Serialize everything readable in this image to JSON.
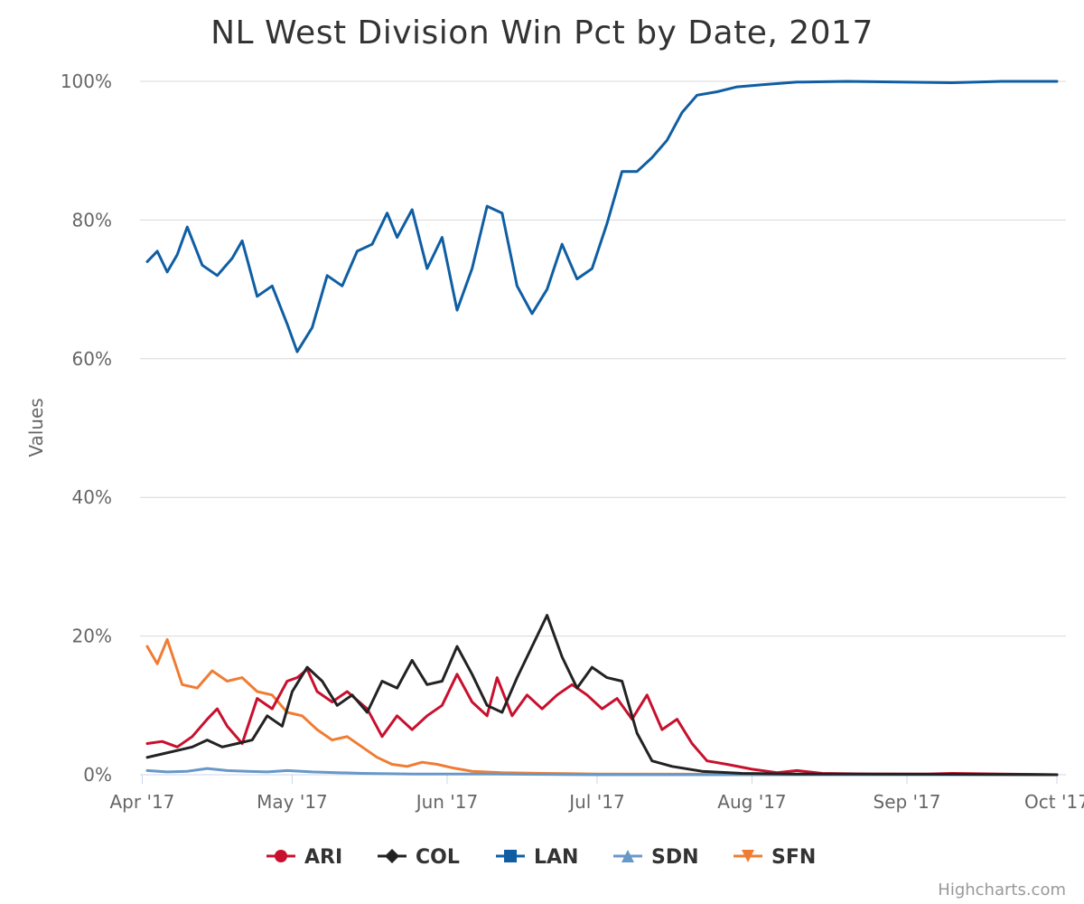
{
  "chart_data": {
    "type": "line",
    "title": "NL West Division Win Pct by Date, 2017",
    "ylabel": "Values",
    "xlabel": "",
    "ylim": [
      0,
      100
    ],
    "y_ticks": [
      "0%",
      "20%",
      "40%",
      "60%",
      "80%",
      "100%"
    ],
    "x_ticks": [
      "Apr '17",
      "May '17",
      "Jun '17",
      "Jul '17",
      "Aug '17",
      "Sep '17",
      "Oct '17"
    ],
    "x_tick_dates": [
      "2017-04-01",
      "2017-05-01",
      "2017-06-01",
      "2017-07-01",
      "2017-08-01",
      "2017-09-01",
      "2017-10-01"
    ],
    "x_range": [
      "2017-04-02",
      "2017-10-01"
    ],
    "legend_position": "bottom-center",
    "grid": true,
    "credits": "Highcharts.com",
    "series": [
      {
        "name": "ARI",
        "color": "#c8102e",
        "marker": "circle",
        "points": [
          [
            "2017-04-02",
            4.5
          ],
          [
            "2017-04-05",
            4.8
          ],
          [
            "2017-04-08",
            4.0
          ],
          [
            "2017-04-11",
            5.5
          ],
          [
            "2017-04-14",
            8.0
          ],
          [
            "2017-04-16",
            9.5
          ],
          [
            "2017-04-18",
            7.0
          ],
          [
            "2017-04-21",
            4.5
          ],
          [
            "2017-04-24",
            11.0
          ],
          [
            "2017-04-27",
            9.5
          ],
          [
            "2017-04-30",
            13.5
          ],
          [
            "2017-05-02",
            14.0
          ],
          [
            "2017-05-04",
            15.2
          ],
          [
            "2017-05-06",
            12.0
          ],
          [
            "2017-05-09",
            10.5
          ],
          [
            "2017-05-12",
            12.0
          ],
          [
            "2017-05-16",
            9.5
          ],
          [
            "2017-05-19",
            5.5
          ],
          [
            "2017-05-22",
            8.5
          ],
          [
            "2017-05-25",
            6.5
          ],
          [
            "2017-05-28",
            8.5
          ],
          [
            "2017-05-31",
            10.0
          ],
          [
            "2017-06-03",
            14.5
          ],
          [
            "2017-06-06",
            10.5
          ],
          [
            "2017-06-09",
            8.5
          ],
          [
            "2017-06-11",
            14.0
          ],
          [
            "2017-06-14",
            8.5
          ],
          [
            "2017-06-17",
            11.5
          ],
          [
            "2017-06-20",
            9.5
          ],
          [
            "2017-06-23",
            11.5
          ],
          [
            "2017-06-26",
            13.0
          ],
          [
            "2017-06-29",
            11.5
          ],
          [
            "2017-07-02",
            9.5
          ],
          [
            "2017-07-05",
            11.0
          ],
          [
            "2017-07-08",
            8.0
          ],
          [
            "2017-07-11",
            11.5
          ],
          [
            "2017-07-14",
            6.5
          ],
          [
            "2017-07-17",
            8.0
          ],
          [
            "2017-07-20",
            4.5
          ],
          [
            "2017-07-23",
            2.0
          ],
          [
            "2017-07-27",
            1.5
          ],
          [
            "2017-08-01",
            0.8
          ],
          [
            "2017-08-06",
            0.3
          ],
          [
            "2017-08-10",
            0.6
          ],
          [
            "2017-08-15",
            0.2
          ],
          [
            "2017-08-25",
            0.1
          ],
          [
            "2017-09-05",
            0.1
          ],
          [
            "2017-09-10",
            0.2
          ],
          [
            "2017-09-20",
            0.1
          ],
          [
            "2017-10-01",
            0.0
          ]
        ]
      },
      {
        "name": "COL",
        "color": "#222222",
        "marker": "diamond",
        "points": [
          [
            "2017-04-02",
            2.5
          ],
          [
            "2017-04-05",
            3.0
          ],
          [
            "2017-04-08",
            3.5
          ],
          [
            "2017-04-11",
            4.0
          ],
          [
            "2017-04-14",
            5.0
          ],
          [
            "2017-04-17",
            4.0
          ],
          [
            "2017-04-20",
            4.5
          ],
          [
            "2017-04-23",
            5.0
          ],
          [
            "2017-04-26",
            8.5
          ],
          [
            "2017-04-29",
            7.0
          ],
          [
            "2017-05-01",
            12.0
          ],
          [
            "2017-05-04",
            15.5
          ],
          [
            "2017-05-07",
            13.5
          ],
          [
            "2017-05-10",
            10.0
          ],
          [
            "2017-05-13",
            11.5
          ],
          [
            "2017-05-16",
            9.0
          ],
          [
            "2017-05-19",
            13.5
          ],
          [
            "2017-05-22",
            12.5
          ],
          [
            "2017-05-25",
            16.5
          ],
          [
            "2017-05-28",
            13.0
          ],
          [
            "2017-05-31",
            13.5
          ],
          [
            "2017-06-03",
            18.5
          ],
          [
            "2017-06-06",
            14.5
          ],
          [
            "2017-06-09",
            10.0
          ],
          [
            "2017-06-12",
            9.0
          ],
          [
            "2017-06-15",
            14.0
          ],
          [
            "2017-06-18",
            18.5
          ],
          [
            "2017-06-21",
            23.0
          ],
          [
            "2017-06-24",
            17.0
          ],
          [
            "2017-06-27",
            12.5
          ],
          [
            "2017-06-30",
            15.5
          ],
          [
            "2017-07-03",
            14.0
          ],
          [
            "2017-07-06",
            13.5
          ],
          [
            "2017-07-09",
            6.0
          ],
          [
            "2017-07-12",
            2.0
          ],
          [
            "2017-07-16",
            1.2
          ],
          [
            "2017-07-22",
            0.5
          ],
          [
            "2017-07-30",
            0.2
          ],
          [
            "2017-08-10",
            0.1
          ],
          [
            "2017-08-25",
            0.1
          ],
          [
            "2017-10-01",
            0.0
          ]
        ]
      },
      {
        "name": "LAN",
        "color": "#0f5ea3",
        "marker": "square",
        "points": [
          [
            "2017-04-02",
            74.0
          ],
          [
            "2017-04-04",
            75.5
          ],
          [
            "2017-04-06",
            72.5
          ],
          [
            "2017-04-08",
            75.0
          ],
          [
            "2017-04-10",
            79.0
          ],
          [
            "2017-04-13",
            73.5
          ],
          [
            "2017-04-16",
            72.0
          ],
          [
            "2017-04-19",
            74.5
          ],
          [
            "2017-04-21",
            77.0
          ],
          [
            "2017-04-24",
            69.0
          ],
          [
            "2017-04-27",
            70.5
          ],
          [
            "2017-04-30",
            65.0
          ],
          [
            "2017-05-02",
            61.0
          ],
          [
            "2017-05-05",
            64.5
          ],
          [
            "2017-05-08",
            72.0
          ],
          [
            "2017-05-11",
            70.5
          ],
          [
            "2017-05-14",
            75.5
          ],
          [
            "2017-05-17",
            76.5
          ],
          [
            "2017-05-20",
            81.0
          ],
          [
            "2017-05-22",
            77.5
          ],
          [
            "2017-05-25",
            81.5
          ],
          [
            "2017-05-28",
            73.0
          ],
          [
            "2017-05-31",
            77.5
          ],
          [
            "2017-06-03",
            67.0
          ],
          [
            "2017-06-06",
            73.0
          ],
          [
            "2017-06-09",
            82.0
          ],
          [
            "2017-06-12",
            81.0
          ],
          [
            "2017-06-15",
            70.5
          ],
          [
            "2017-06-18",
            66.5
          ],
          [
            "2017-06-21",
            70.0
          ],
          [
            "2017-06-24",
            76.5
          ],
          [
            "2017-06-27",
            71.5
          ],
          [
            "2017-06-30",
            73.0
          ],
          [
            "2017-07-03",
            79.5
          ],
          [
            "2017-07-06",
            87.0
          ],
          [
            "2017-07-09",
            87.0
          ],
          [
            "2017-07-12",
            89.0
          ],
          [
            "2017-07-15",
            91.5
          ],
          [
            "2017-07-18",
            95.5
          ],
          [
            "2017-07-21",
            98.0
          ],
          [
            "2017-07-25",
            98.5
          ],
          [
            "2017-07-29",
            99.2
          ],
          [
            "2017-08-03",
            99.5
          ],
          [
            "2017-08-10",
            99.9
          ],
          [
            "2017-08-20",
            100.0
          ],
          [
            "2017-09-10",
            99.8
          ],
          [
            "2017-09-20",
            100.0
          ],
          [
            "2017-10-01",
            100.0
          ]
        ]
      },
      {
        "name": "SDN",
        "color": "#6898c8",
        "marker": "triangle",
        "points": [
          [
            "2017-04-02",
            0.6
          ],
          [
            "2017-04-06",
            0.4
          ],
          [
            "2017-04-10",
            0.5
          ],
          [
            "2017-04-14",
            0.9
          ],
          [
            "2017-04-18",
            0.6
          ],
          [
            "2017-04-22",
            0.5
          ],
          [
            "2017-04-26",
            0.4
          ],
          [
            "2017-04-30",
            0.6
          ],
          [
            "2017-05-05",
            0.4
          ],
          [
            "2017-05-10",
            0.3
          ],
          [
            "2017-05-15",
            0.2
          ],
          [
            "2017-05-25",
            0.1
          ],
          [
            "2017-06-10",
            0.1
          ],
          [
            "2017-07-01",
            0.0
          ],
          [
            "2017-10-01",
            0.0
          ]
        ]
      },
      {
        "name": "SFN",
        "color": "#f07c33",
        "marker": "triangle-down",
        "points": [
          [
            "2017-04-02",
            18.5
          ],
          [
            "2017-04-04",
            16.0
          ],
          [
            "2017-04-06",
            19.5
          ],
          [
            "2017-04-09",
            13.0
          ],
          [
            "2017-04-12",
            12.5
          ],
          [
            "2017-04-15",
            15.0
          ],
          [
            "2017-04-18",
            13.5
          ],
          [
            "2017-04-21",
            14.0
          ],
          [
            "2017-04-24",
            12.0
          ],
          [
            "2017-04-27",
            11.5
          ],
          [
            "2017-04-30",
            9.0
          ],
          [
            "2017-05-03",
            8.5
          ],
          [
            "2017-05-06",
            6.5
          ],
          [
            "2017-05-09",
            5.0
          ],
          [
            "2017-05-12",
            5.5
          ],
          [
            "2017-05-15",
            4.0
          ],
          [
            "2017-05-18",
            2.5
          ],
          [
            "2017-05-21",
            1.5
          ],
          [
            "2017-05-24",
            1.2
          ],
          [
            "2017-05-27",
            1.8
          ],
          [
            "2017-05-30",
            1.5
          ],
          [
            "2017-06-02",
            1.0
          ],
          [
            "2017-06-06",
            0.5
          ],
          [
            "2017-06-12",
            0.3
          ],
          [
            "2017-06-20",
            0.2
          ],
          [
            "2017-07-01",
            0.1
          ],
          [
            "2017-10-01",
            0.0
          ]
        ]
      }
    ]
  }
}
